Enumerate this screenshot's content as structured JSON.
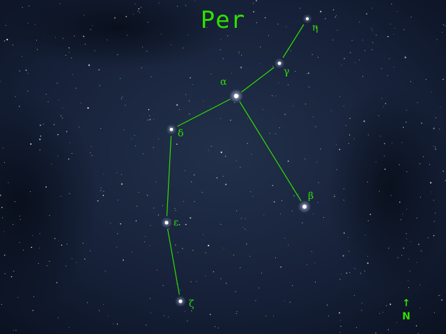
{
  "constellation": {
    "abbreviation": "Per",
    "stars": [
      {
        "key": "alpha",
        "label": "α",
        "brightness": 1.0
      },
      {
        "key": "beta",
        "label": "β",
        "brightness": 0.9
      },
      {
        "key": "gamma",
        "label": "γ",
        "brightness": 0.65
      },
      {
        "key": "delta",
        "label": "δ",
        "brightness": 0.65
      },
      {
        "key": "epsilon",
        "label": "ε",
        "brightness": 0.7
      },
      {
        "key": "zeta",
        "label": "ζ",
        "brightness": 0.7
      },
      {
        "key": "eta",
        "label": "η",
        "brightness": 0.55
      }
    ],
    "lines": [
      [
        "eta",
        "gamma"
      ],
      [
        "gamma",
        "alpha"
      ],
      [
        "alpha",
        "delta"
      ],
      [
        "alpha",
        "beta"
      ],
      [
        "delta",
        "epsilon"
      ],
      [
        "epsilon",
        "zeta"
      ]
    ]
  },
  "compass": {
    "arrow": "↑",
    "label": "N"
  },
  "colors": {
    "sky_center": "#1e2b44",
    "sky_edge": "#0a1120",
    "figure": "#2fe000",
    "star": "#ffffff"
  },
  "icons": {
    "compass": "north-arrow-icon"
  }
}
